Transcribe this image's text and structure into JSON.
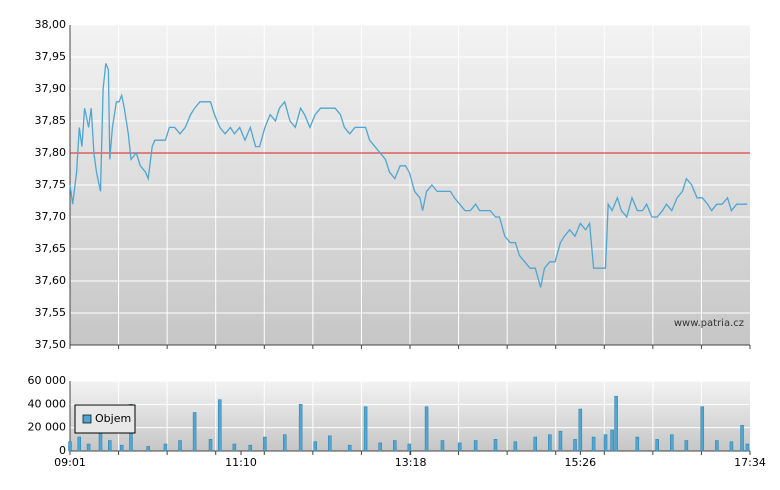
{
  "chart_data": [
    {
      "type": "line",
      "annotation": "www.patria.cz",
      "x": [
        "09:01",
        "09:03",
        "09:06",
        "09:08",
        "09:10",
        "09:12",
        "09:15",
        "09:17",
        "09:19",
        "09:21",
        "09:24",
        "09:26",
        "09:28",
        "09:30",
        "09:31",
        "09:33",
        "09:36",
        "09:38",
        "09:40",
        "09:42",
        "09:45",
        "09:47",
        "09:51",
        "09:54",
        "09:58",
        "10:00",
        "10:03",
        "10:05",
        "10:09",
        "10:13",
        "10:16",
        "10:20",
        "10:24",
        "10:28",
        "10:32",
        "10:35",
        "10:39",
        "10:43",
        "10:47",
        "10:50",
        "10:54",
        "10:58",
        "11:02",
        "11:05",
        "11:09",
        "11:13",
        "11:17",
        "11:21",
        "11:24",
        "11:28",
        "11:32",
        "11:36",
        "11:39",
        "11:43",
        "11:47",
        "11:51",
        "11:55",
        "11:58",
        "12:02",
        "12:06",
        "12:10",
        "12:17",
        "12:21",
        "12:25",
        "12:28",
        "12:32",
        "12:36",
        "12:40",
        "12:44",
        "12:47",
        "12:51",
        "12:55",
        "12:59",
        "13:02",
        "13:06",
        "13:10",
        "13:14",
        "13:17",
        "13:21",
        "13:25",
        "13:27",
        "13:30",
        "13:34",
        "13:38",
        "13:42",
        "13:48",
        "13:51",
        "13:55",
        "13:59",
        "14:03",
        "14:07",
        "14:10",
        "14:14",
        "14:18",
        "14:22",
        "14:25",
        "14:29",
        "14:33",
        "14:37",
        "14:40",
        "14:44",
        "14:48",
        "14:52",
        "14:56",
        "14:59",
        "15:03",
        "15:07",
        "15:11",
        "15:14",
        "15:18",
        "15:22",
        "15:26",
        "15:30",
        "15:33",
        "15:36",
        "15:41",
        "15:45",
        "15:47",
        "15:50",
        "15:54",
        "15:57",
        "16:01",
        "16:05",
        "16:09",
        "16:13",
        "16:16",
        "16:20",
        "16:24",
        "16:28",
        "16:31",
        "16:35",
        "16:39",
        "16:43",
        "16:46",
        "16:50",
        "16:54",
        "16:58",
        "17:02",
        "17:05",
        "17:09",
        "17:13",
        "17:17",
        "17:20",
        "17:24",
        "17:28",
        "17:32"
      ],
      "series": [
        {
          "color": "#4ea6d2",
          "values": [
            37.75,
            37.72,
            37.77,
            37.84,
            37.81,
            37.87,
            37.84,
            37.87,
            37.8,
            37.77,
            37.74,
            37.9,
            37.94,
            37.93,
            37.79,
            37.84,
            37.88,
            37.88,
            37.89,
            37.87,
            37.83,
            37.79,
            37.8,
            37.78,
            37.77,
            37.76,
            37.81,
            37.82,
            37.82,
            37.82,
            37.84,
            37.84,
            37.83,
            37.84,
            37.86,
            37.87,
            37.88,
            37.88,
            37.88,
            37.86,
            37.84,
            37.83,
            37.84,
            37.83,
            37.84,
            37.82,
            37.84,
            37.81,
            37.81,
            37.84,
            37.86,
            37.85,
            37.87,
            37.88,
            37.85,
            37.84,
            37.87,
            37.86,
            37.84,
            37.86,
            37.87,
            37.87,
            37.87,
            37.86,
            37.84,
            37.83,
            37.84,
            37.84,
            37.84,
            37.82,
            37.81,
            37.8,
            37.79,
            37.77,
            37.76,
            37.78,
            37.78,
            37.77,
            37.74,
            37.73,
            37.71,
            37.74,
            37.75,
            37.74,
            37.74,
            37.74,
            37.73,
            37.72,
            37.71,
            37.71,
            37.72,
            37.71,
            37.71,
            37.71,
            37.7,
            37.7,
            37.67,
            37.66,
            37.66,
            37.64,
            37.63,
            37.62,
            37.62,
            37.59,
            37.62,
            37.63,
            37.63,
            37.66,
            37.67,
            37.68,
            37.67,
            37.69,
            37.68,
            37.69,
            37.62,
            37.62,
            37.62,
            37.72,
            37.71,
            37.73,
            37.71,
            37.7,
            37.73,
            37.71,
            37.71,
            37.72,
            37.7,
            37.7,
            37.71,
            37.72,
            37.71,
            37.73,
            37.74,
            37.76,
            37.75,
            37.73,
            37.73,
            37.72,
            37.71,
            37.72,
            37.72,
            37.73,
            37.71,
            37.72,
            37.72,
            37.72
          ]
        }
      ],
      "reference_line": {
        "value": 37.8,
        "color": "#d62020"
      },
      "xlim": [
        "09:01",
        "17:34"
      ],
      "ylim": [
        37.5,
        38.0
      ],
      "yticks": [
        {
          "value": 37.5,
          "label": "37,50"
        },
        {
          "value": 37.55,
          "label": "37,55"
        },
        {
          "value": 37.6,
          "label": "37,60"
        },
        {
          "value": 37.65,
          "label": "37,65"
        },
        {
          "value": 37.7,
          "label": "37,70"
        },
        {
          "value": 37.75,
          "label": "37,75"
        },
        {
          "value": 37.8,
          "label": "37,80"
        },
        {
          "value": 37.85,
          "label": "37,85"
        },
        {
          "value": 37.9,
          "label": "37,90"
        },
        {
          "value": 37.95,
          "label": "37,95"
        },
        {
          "value": 38.0,
          "label": "38,00"
        }
      ],
      "grid": true
    },
    {
      "type": "bar",
      "x": [
        "09:01",
        "09:08",
        "09:15",
        "09:24",
        "09:31",
        "09:40",
        "09:47",
        "10:00",
        "10:13",
        "10:24",
        "10:35",
        "10:47",
        "10:54",
        "11:05",
        "11:17",
        "11:28",
        "11:43",
        "11:55",
        "12:06",
        "12:17",
        "12:32",
        "12:44",
        "12:55",
        "13:06",
        "13:17",
        "13:30",
        "13:42",
        "13:55",
        "14:07",
        "14:22",
        "14:37",
        "14:52",
        "15:03",
        "15:11",
        "15:22",
        "15:26",
        "15:36",
        "15:45",
        "15:50",
        "15:53",
        "16:09",
        "16:24",
        "16:35",
        "16:46",
        "16:58",
        "17:09",
        "17:20",
        "17:28",
        "17:32"
      ],
      "series": [
        {
          "name": "Objem",
          "color": "#4ea6d2",
          "values": [
            8000,
            12000,
            6000,
            36000,
            9000,
            5000,
            40000,
            4000,
            6000,
            9000,
            33000,
            10000,
            44000,
            6000,
            5000,
            12000,
            14000,
            40000,
            8000,
            13000,
            5000,
            38000,
            7000,
            9000,
            6000,
            38000,
            9000,
            7000,
            9000,
            10000,
            8000,
            12000,
            14000,
            17000,
            10000,
            36000,
            12000,
            14000,
            18000,
            47000,
            12000,
            10000,
            14000,
            9000,
            38000,
            9000,
            8000,
            22000,
            6000
          ]
        }
      ],
      "legend": "upper left",
      "xlim": [
        "09:01",
        "17:34"
      ],
      "xticks": [
        "09:01",
        "11:10",
        "13:18",
        "15:26",
        "17:34"
      ],
      "ylim": [
        0,
        60000
      ],
      "yticks": [
        0,
        {
          "value": 20000,
          "label": "20 000"
        },
        {
          "value": 40000,
          "label": "40 000"
        },
        {
          "value": 60000,
          "label": "60 000"
        }
      ],
      "grid": true
    }
  ]
}
